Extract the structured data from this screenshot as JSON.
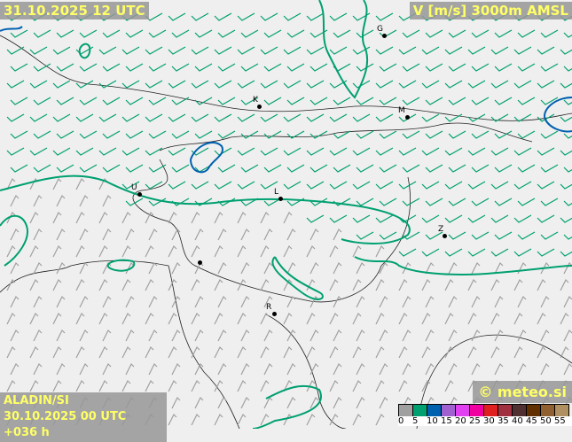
{
  "valid_time": "31.10.2025 12 UTC",
  "field": "V [m/s] 3000m AMSL",
  "model": "ALADIN/SI",
  "run": "30.10.2025 00 UTC +036 h",
  "copyright": "© meteo.si",
  "legend": {
    "ticks": [
      "0",
      "5",
      "10",
      "15",
      "20",
      "25",
      "30",
      "35",
      "40",
      "45",
      "50",
      "55"
    ],
    "colors": [
      "#a0a0a0",
      "#00a070",
      "#0060b0",
      "#a060d0",
      "#e040f0",
      "#f000a0",
      "#e02020",
      "#a03040",
      "#503030",
      "#603000",
      "#906030",
      "#b09060"
    ]
  },
  "cities": [
    {
      "label": "G"
    },
    {
      "label": "K"
    },
    {
      "label": "M"
    },
    {
      "label": "U"
    },
    {
      "label": "L"
    },
    {
      "label": "Z"
    },
    {
      "label": ""
    },
    {
      "label": "R"
    }
  ],
  "colors": {
    "barb_strong": "#00a070",
    "barb_weak": "#a0a0a0",
    "contour_5": "#00a070",
    "contour_10": "#0060b0"
  }
}
